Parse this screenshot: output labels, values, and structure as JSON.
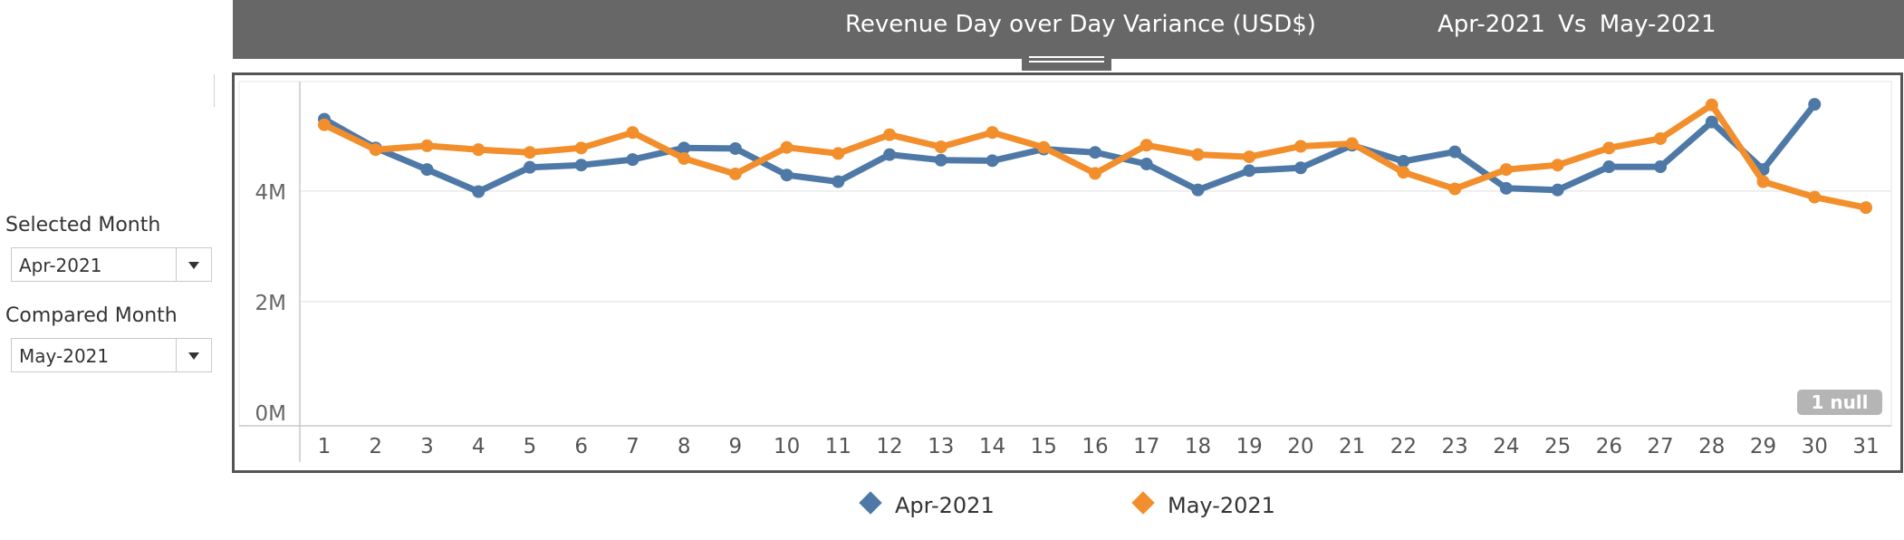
{
  "header": {
    "title": "Revenue Day over Day Variance (USD$)",
    "comparison": "Apr-2021  Vs  May-2021"
  },
  "filters": {
    "selected_label": "Selected Month",
    "selected_value": "Apr-2021",
    "compared_label": "Compared Month",
    "compared_value": "May-2021"
  },
  "null_badge": "1 null",
  "colors": {
    "apr": "#4e79a7",
    "may": "#f28e2b",
    "header_bg": "#676767"
  },
  "icons": {
    "dropdown": "caret-down-icon",
    "legend": "diamond-icon",
    "resize": "drag-handle-icon"
  },
  "chart_data": {
    "type": "line",
    "xlabel": "",
    "ylabel": "",
    "x": [
      1,
      2,
      3,
      4,
      5,
      6,
      7,
      8,
      9,
      10,
      11,
      12,
      13,
      14,
      15,
      16,
      17,
      18,
      19,
      20,
      21,
      22,
      23,
      24,
      25,
      26,
      27,
      28,
      29,
      30,
      31
    ],
    "y_ticks": [
      "0M",
      "2M",
      "4M"
    ],
    "y_tick_values": [
      0,
      2000000,
      4000000
    ],
    "ylim": [
      -250000,
      5950000
    ],
    "grid": "horizontal",
    "legend_position": "bottom",
    "series": [
      {
        "name": "Apr-2021",
        "values": [
          5300000,
          4780000,
          4390000,
          3990000,
          4430000,
          4470000,
          4570000,
          4780000,
          4770000,
          4290000,
          4170000,
          4660000,
          4560000,
          4550000,
          4760000,
          4700000,
          4490000,
          4020000,
          4370000,
          4420000,
          4830000,
          4540000,
          4710000,
          4050000,
          4020000,
          4440000,
          4440000,
          5250000,
          4390000,
          5570000,
          null
        ]
      },
      {
        "name": "May-2021",
        "values": [
          5200000,
          4750000,
          4820000,
          4750000,
          4700000,
          4780000,
          5060000,
          4590000,
          4310000,
          4790000,
          4680000,
          5020000,
          4800000,
          5060000,
          4790000,
          4320000,
          4830000,
          4660000,
          4620000,
          4810000,
          4860000,
          4340000,
          4040000,
          4390000,
          4470000,
          4780000,
          4950000,
          5560000,
          4170000,
          3890000,
          3700000
        ]
      }
    ]
  },
  "legend": [
    {
      "label": "Apr-2021"
    },
    {
      "label": "May-2021"
    }
  ]
}
